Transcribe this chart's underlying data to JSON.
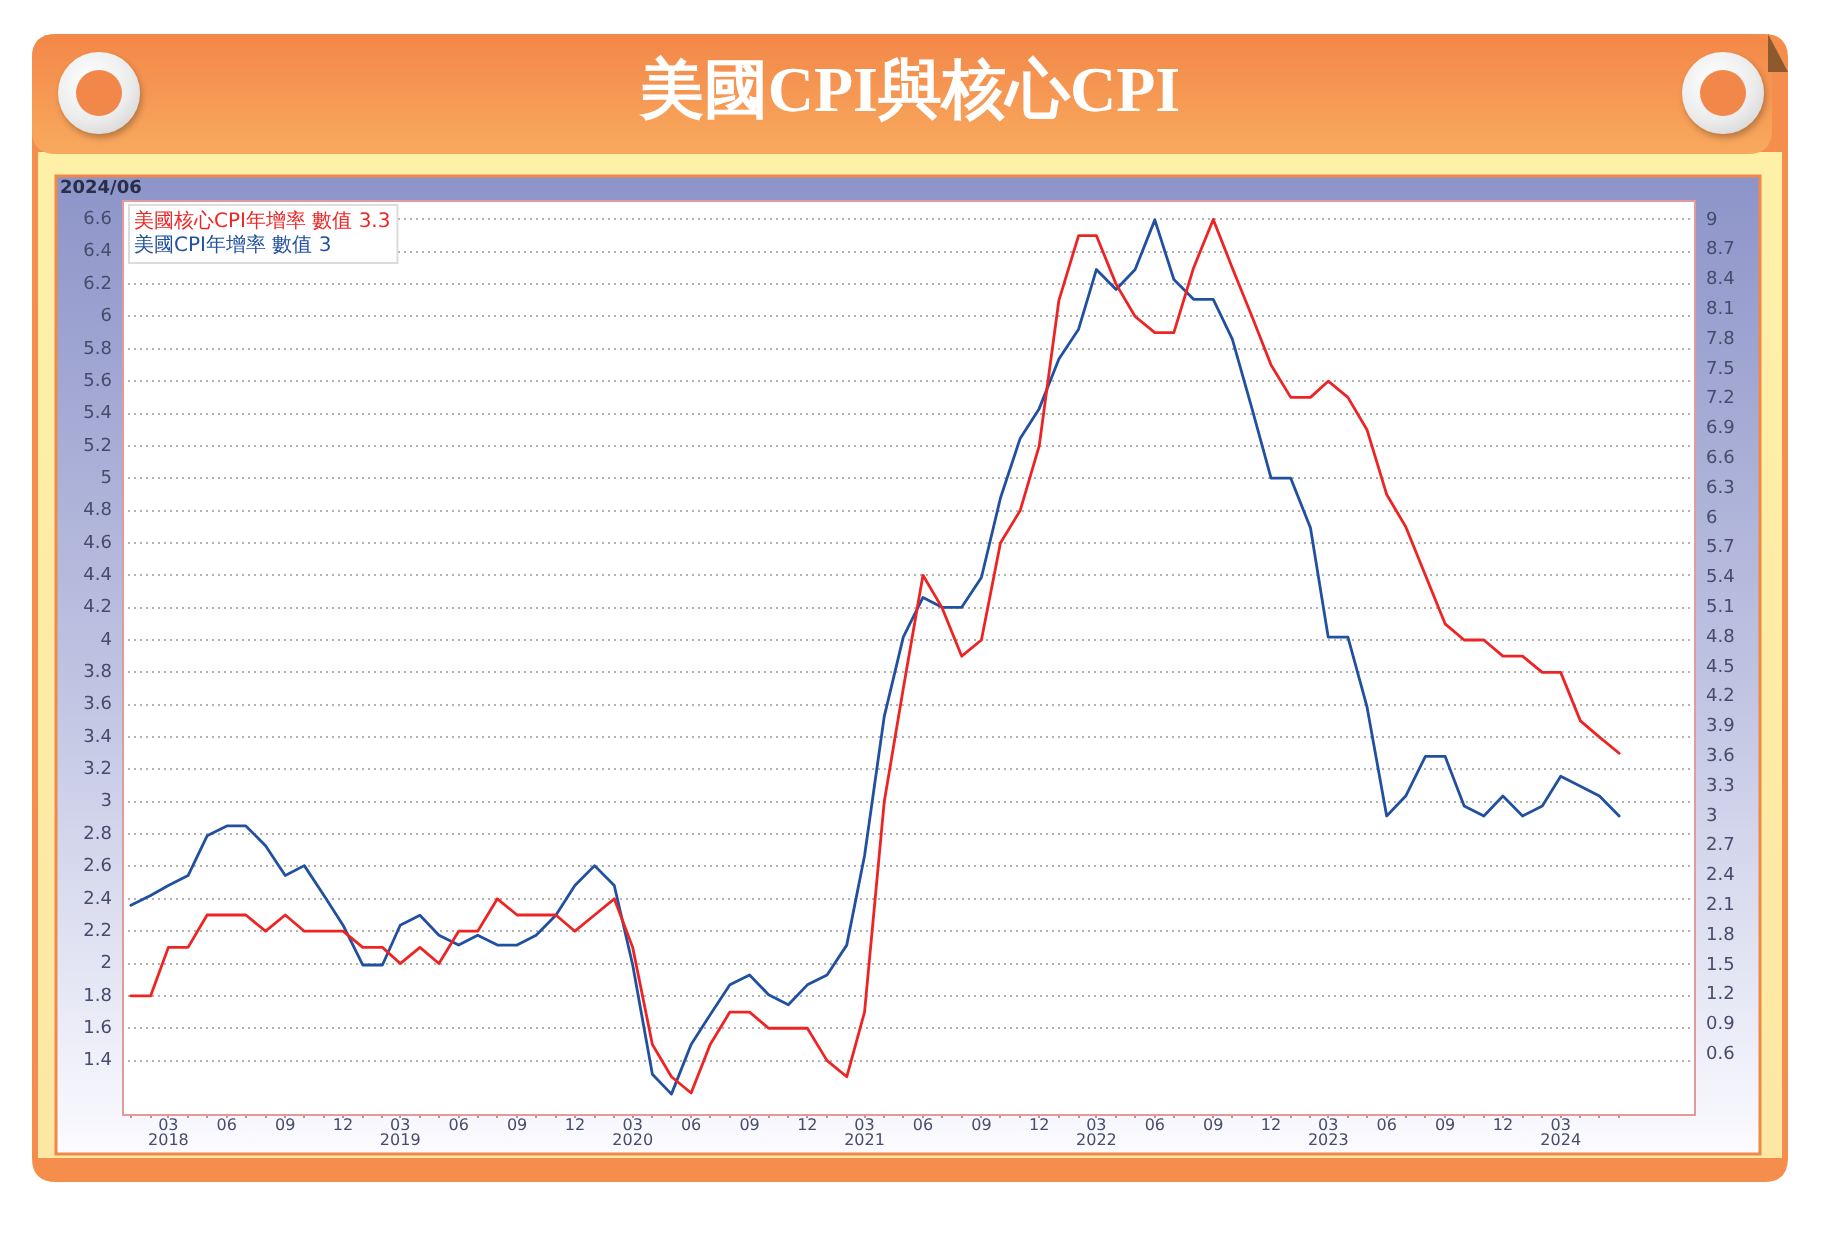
{
  "chart_data": {
    "type": "line",
    "title": "美國CPI與核心CPI",
    "annotations": [
      "2024/06"
    ],
    "x": [
      "2018-01",
      "2018-02",
      "2018-03",
      "2018-04",
      "2018-05",
      "2018-06",
      "2018-07",
      "2018-08",
      "2018-09",
      "2018-10",
      "2018-11",
      "2018-12",
      "2019-01",
      "2019-02",
      "2019-03",
      "2019-04",
      "2019-05",
      "2019-06",
      "2019-07",
      "2019-08",
      "2019-09",
      "2019-10",
      "2019-11",
      "2019-12",
      "2020-01",
      "2020-02",
      "2020-03",
      "2020-04",
      "2020-05",
      "2020-06",
      "2020-07",
      "2020-08",
      "2020-09",
      "2020-10",
      "2020-11",
      "2020-12",
      "2021-01",
      "2021-02",
      "2021-03",
      "2021-04",
      "2021-05",
      "2021-06",
      "2021-07",
      "2021-08",
      "2021-09",
      "2021-10",
      "2021-11",
      "2021-12",
      "2022-01",
      "2022-02",
      "2022-03",
      "2022-04",
      "2022-05",
      "2022-06",
      "2022-07",
      "2022-08",
      "2022-09",
      "2022-10",
      "2022-11",
      "2022-12",
      "2023-01",
      "2023-02",
      "2023-03",
      "2023-04",
      "2023-05",
      "2023-06",
      "2023-07",
      "2023-08",
      "2023-09",
      "2023-10",
      "2023-11",
      "2023-12",
      "2024-01",
      "2024-02",
      "2024-03",
      "2024-04",
      "2024-05",
      "2024-06"
    ],
    "series": [
      {
        "name": "美國核心CPI年增率 數值 3.3",
        "color": "#ee2424",
        "values": [
          1.8,
          1.8,
          2.1,
          2.1,
          2.3,
          2.3,
          2.3,
          2.2,
          2.3,
          2.2,
          2.2,
          2.2,
          2.1,
          2.1,
          2.0,
          2.1,
          2.0,
          2.2,
          2.2,
          2.4,
          2.3,
          2.3,
          2.3,
          2.2,
          2.3,
          2.4,
          2.1,
          1.5,
          1.3,
          1.2,
          1.5,
          1.7,
          1.7,
          1.6,
          1.6,
          1.6,
          1.4,
          1.3,
          1.7,
          3.0,
          3.7,
          4.4,
          4.2,
          3.9,
          4.0,
          4.6,
          4.8,
          5.2,
          6.1,
          6.5,
          6.5,
          6.2,
          6.0,
          5.9,
          5.9,
          6.3,
          6.6,
          6.3,
          6.0,
          5.7,
          5.5,
          5.5,
          5.6,
          5.5,
          5.3,
          4.9,
          4.7,
          4.4,
          4.1,
          4.0,
          4.0,
          3.9,
          3.9,
          3.8,
          3.8,
          3.5,
          3.4,
          3.3
        ]
      },
      {
        "name": "美國CPI年增率 數值 3",
        "color": "#2150a0",
        "axis": "y2",
        "values": [
          2.1,
          2.2,
          2.3,
          2.4,
          2.8,
          2.9,
          2.9,
          2.7,
          2.4,
          2.5,
          2.2,
          1.9,
          1.5,
          1.5,
          1.9,
          2.0,
          1.8,
          1.7,
          1.8,
          1.7,
          1.7,
          1.8,
          2.0,
          2.3,
          2.5,
          2.3,
          1.5,
          0.4,
          0.2,
          0.7,
          1.0,
          1.3,
          1.4,
          1.2,
          1.1,
          1.3,
          1.4,
          1.7,
          2.6,
          4.0,
          4.8,
          5.2,
          5.1,
          5.1,
          5.4,
          6.2,
          6.8,
          7.1,
          7.6,
          7.9,
          8.5,
          8.3,
          8.5,
          9.0,
          8.4,
          8.2,
          8.2,
          7.8,
          7.1,
          6.4,
          6.4,
          5.9,
          4.8,
          4.8,
          4.1,
          3.0,
          3.2,
          3.6,
          3.6,
          3.1,
          3.0,
          3.2,
          3.0,
          3.1,
          3.4,
          3.3,
          3.2,
          3.0
        ]
      }
    ],
    "xlim": [
      "2017-12-18",
      "2024-09-30"
    ],
    "xticks": [
      {
        "value": "2018-01",
        "label": null
      },
      {
        "value": "2018-02",
        "label": null
      },
      {
        "value": "2018-03",
        "label": "03\n2018"
      },
      {
        "value": "2018-04",
        "label": null
      },
      {
        "value": "2018-05",
        "label": null
      },
      {
        "value": "2018-06",
        "label": "06"
      },
      {
        "value": "2018-07",
        "label": null
      },
      {
        "value": "2018-08",
        "label": null
      },
      {
        "value": "2018-09",
        "label": "09"
      },
      {
        "value": "2018-10",
        "label": null
      },
      {
        "value": "2018-11",
        "label": null
      },
      {
        "value": "2018-12",
        "label": "12"
      },
      {
        "value": "2019-01",
        "label": null
      },
      {
        "value": "2019-02",
        "label": null
      },
      {
        "value": "2019-03",
        "label": "03\n2019"
      },
      {
        "value": "2019-04",
        "label": null
      },
      {
        "value": "2019-05",
        "label": null
      },
      {
        "value": "2019-06",
        "label": "06"
      },
      {
        "value": "2019-07",
        "label": null
      },
      {
        "value": "2019-08",
        "label": null
      },
      {
        "value": "2019-09",
        "label": "09"
      },
      {
        "value": "2019-10",
        "label": null
      },
      {
        "value": "2019-11",
        "label": null
      },
      {
        "value": "2019-12",
        "label": "12"
      },
      {
        "value": "2020-01",
        "label": null
      },
      {
        "value": "2020-02",
        "label": null
      },
      {
        "value": "2020-03",
        "label": "03\n2020"
      },
      {
        "value": "2020-04",
        "label": null
      },
      {
        "value": "2020-05",
        "label": null
      },
      {
        "value": "2020-06",
        "label": "06"
      },
      {
        "value": "2020-07",
        "label": null
      },
      {
        "value": "2020-08",
        "label": null
      },
      {
        "value": "2020-09",
        "label": "09"
      },
      {
        "value": "2020-10",
        "label": null
      },
      {
        "value": "2020-11",
        "label": null
      },
      {
        "value": "2020-12",
        "label": "12"
      },
      {
        "value": "2021-01",
        "label": null
      },
      {
        "value": "2021-02",
        "label": null
      },
      {
        "value": "2021-03",
        "label": "03\n2021"
      },
      {
        "value": "2021-04",
        "label": null
      },
      {
        "value": "2021-05",
        "label": null
      },
      {
        "value": "2021-06",
        "label": "06"
      },
      {
        "value": "2021-07",
        "label": null
      },
      {
        "value": "2021-08",
        "label": null
      },
      {
        "value": "2021-09",
        "label": "09"
      },
      {
        "value": "2021-10",
        "label": null
      },
      {
        "value": "2021-11",
        "label": null
      },
      {
        "value": "2021-12",
        "label": "12"
      },
      {
        "value": "2022-01",
        "label": null
      },
      {
        "value": "2022-02",
        "label": null
      },
      {
        "value": "2022-03",
        "label": "03\n2022"
      },
      {
        "value": "2022-04",
        "label": null
      },
      {
        "value": "2022-05",
        "label": null
      },
      {
        "value": "2022-06",
        "label": "06"
      },
      {
        "value": "2022-07",
        "label": null
      },
      {
        "value": "2022-08",
        "label": null
      },
      {
        "value": "2022-09",
        "label": "09"
      },
      {
        "value": "2022-10",
        "label": null
      },
      {
        "value": "2022-11",
        "label": null
      },
      {
        "value": "2022-12",
        "label": "12"
      },
      {
        "value": "2023-01",
        "label": null
      },
      {
        "value": "2023-02",
        "label": null
      },
      {
        "value": "2023-03",
        "label": "03\n2023"
      },
      {
        "value": "2023-04",
        "label": null
      },
      {
        "value": "2023-05",
        "label": null
      },
      {
        "value": "2023-06",
        "label": "06"
      },
      {
        "value": "2023-07",
        "label": null
      },
      {
        "value": "2023-08",
        "label": null
      },
      {
        "value": "2023-09",
        "label": "09"
      },
      {
        "value": "2023-10",
        "label": null
      },
      {
        "value": "2023-11",
        "label": null
      },
      {
        "value": "2023-12",
        "label": "12"
      },
      {
        "value": "2024-01",
        "label": null
      },
      {
        "value": "2024-02",
        "label": null
      },
      {
        "value": "2024-03",
        "label": "03\n2024"
      },
      {
        "value": "2024-04",
        "label": null
      },
      {
        "value": "2024-05",
        "label": null
      },
      {
        "value": "2024-06",
        "label": null
      }
    ],
    "ylim": [
      1.07,
      6.72
    ],
    "yticks": [
      1.4,
      1.6,
      1.8,
      2,
      2.2,
      2.4,
      2.6,
      2.8,
      3,
      3.2,
      3.4,
      3.6,
      3.8,
      4,
      4.2,
      4.4,
      4.6,
      4.8,
      5,
      5.2,
      5.4,
      5.6,
      5.8,
      6,
      6.2,
      6.4,
      6.6
    ],
    "y2lim": [
      0,
      9.2
    ],
    "y2ticks": [
      0.6,
      0.9,
      1.2,
      1.5,
      1.8,
      2.1,
      2.4,
      2.7,
      3,
      3.3,
      3.6,
      3.9,
      4.2,
      4.5,
      4.8,
      5.1,
      5.4,
      5.7,
      6,
      6.3,
      6.6,
      6.9,
      7.2,
      7.5,
      7.8,
      8.1,
      8.4,
      8.7,
      9
    ],
    "grid": "y",
    "legend": "top left"
  }
}
